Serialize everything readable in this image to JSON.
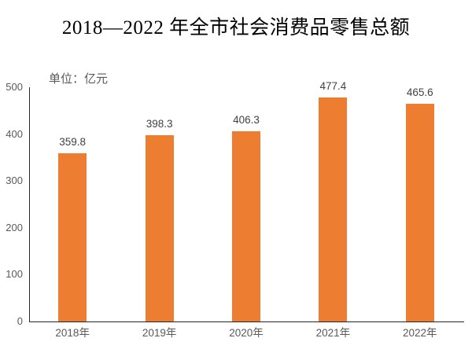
{
  "title": "2018—2022 年全市社会消费品零售总额",
  "unit_label": "单位：亿元",
  "colors": {
    "bar": "#ED7D31",
    "axis_line": "#262626",
    "tick_text": "#595959",
    "value_text": "#404040",
    "title_text": "#000000",
    "background": "#ffffff"
  },
  "chart_data": {
    "type": "bar",
    "title": "2018—2022 年全市社会消费品零售总额",
    "unit": "单位：亿元",
    "categories": [
      "2018年",
      "2019年",
      "2020年",
      "2021年",
      "2022年"
    ],
    "values": [
      359.8,
      398.3,
      406.3,
      477.4,
      465.6
    ],
    "ylim": [
      0,
      500
    ],
    "yticks": [
      0,
      100,
      200,
      300,
      400,
      500
    ],
    "grid": false,
    "legend": "none",
    "bar_color": "#ED7D31"
  }
}
